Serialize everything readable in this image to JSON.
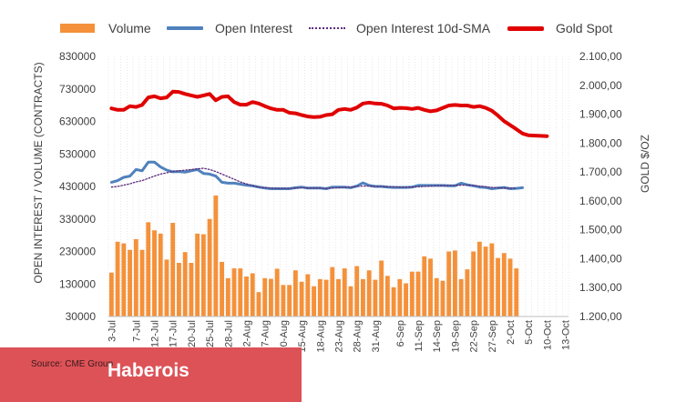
{
  "legend": [
    {
      "label": "Volume",
      "color": "#f4913a",
      "style": "bar"
    },
    {
      "label": "Open Interest",
      "color": "#4f81bd",
      "style": "line"
    },
    {
      "label": "Open Interest 10d-SMA",
      "color": "#5b2c7a",
      "style": "dotted"
    },
    {
      "label": "Gold Spot",
      "color": "#e00000",
      "style": "thick"
    }
  ],
  "source_text": "Source: CME Group",
  "brand": "Haberois",
  "chart_data": {
    "type": "bar",
    "title": "",
    "xlabel": "",
    "ylabel": "OPEN INTEREST / VOLUME (CONTRACTS)",
    "y2label": "GOLD $/OZ",
    "ylim": [
      30000,
      830000
    ],
    "y2lim": [
      1200,
      2100
    ],
    "yticks": [
      "30000",
      "130000",
      "230000",
      "330000",
      "430000",
      "530000",
      "630000",
      "730000",
      "830000"
    ],
    "y2ticks": [
      "1.200,00",
      "1.300,00",
      "1.400,00",
      "1.500,00",
      "1.600,00",
      "1.700,00",
      "1.800,00",
      "1.900,00",
      "2.000,00",
      "2.100,00"
    ],
    "categories": [
      "3-Jul",
      "4-Jul",
      "5-Jul",
      "6-Jul",
      "7-Jul",
      "10-Jul",
      "11-Jul",
      "12-Jul",
      "13-Jul",
      "14-Jul",
      "17-Jul",
      "18-Jul",
      "19-Jul",
      "20-Jul",
      "21-Jul",
      "24-Jul",
      "25-Jul",
      "26-Jul",
      "27-Jul",
      "28-Jul",
      "31-Jul",
      "1-Aug",
      "2-Aug",
      "3-Aug",
      "4-Aug",
      "7-Aug",
      "8-Aug",
      "9-Aug",
      "10-Aug",
      "11-Aug",
      "14-Aug",
      "15-Aug",
      "16-Aug",
      "17-Aug",
      "18-Aug",
      "21-Aug",
      "22-Aug",
      "23-Aug",
      "24-Aug",
      "25-Aug",
      "28-Aug",
      "29-Aug",
      "30-Aug",
      "31-Aug",
      "1-Sep",
      "4-Sep",
      "5-Sep",
      "6-Sep",
      "7-Sep",
      "8-Sep",
      "11-Sep",
      "12-Sep",
      "13-Sep",
      "14-Sep",
      "15-Sep",
      "18-Sep",
      "19-Sep",
      "20-Sep",
      "21-Sep",
      "22-Sep",
      "25-Sep",
      "26-Sep",
      "27-Sep",
      "28-Sep",
      "29-Sep",
      "2-Oct",
      "3-Oct",
      "4-Oct",
      "5-Oct",
      "6-Oct",
      "9-Oct",
      "10-Oct",
      "11-Oct",
      "12-Oct",
      "13-Oct"
    ],
    "tick_labels": [
      "3-Jul",
      "7-Jul",
      "12-Jul",
      "17-Jul",
      "20-Jul",
      "25-Jul",
      "28-Jul",
      "2-Aug",
      "7-Aug",
      "10-Aug",
      "15-Aug",
      "18-Aug",
      "23-Aug",
      "28-Aug",
      "31-Aug",
      "6-Sep",
      "11-Sep",
      "14-Sep",
      "19-Sep",
      "22-Sep",
      "27-Sep",
      "2-Oct",
      "5-Oct",
      "10-Oct",
      "13-Oct"
    ],
    "series": [
      {
        "name": "Volume",
        "type": "bar",
        "axis": "left",
        "values": [
          165000,
          260000,
          255000,
          235000,
          268000,
          235000,
          320000,
          295000,
          285000,
          205000,
          318000,
          195000,
          228000,
          195000,
          285000,
          283000,
          330000,
          402000,
          198000,
          148000,
          178000,
          178000,
          153000,
          163000,
          105000,
          148000,
          146000,
          177000,
          127000,
          127000,
          172000,
          137000,
          160000,
          123000,
          145000,
          143000,
          182000,
          145000,
          178000,
          123000,
          185000,
          145000,
          172000,
          143000,
          202000,
          155000,
          120000,
          145000,
          132000,
          168000,
          168000,
          215000,
          208000,
          148000,
          140000,
          230000,
          233000,
          145000,
          175000,
          230000,
          260000,
          245000,
          255000,
          210000,
          225000,
          208000,
          178000,
          null,
          null,
          null,
          null,
          null,
          null,
          null,
          null
        ]
      },
      {
        "name": "Open Interest",
        "type": "line",
        "axis": "left",
        "values": [
          443000,
          448000,
          458000,
          462000,
          482000,
          478000,
          505000,
          505000,
          490000,
          480000,
          475000,
          476000,
          474000,
          478000,
          482000,
          470000,
          468000,
          462000,
          443000,
          440000,
          440000,
          437000,
          434000,
          432000,
          428000,
          425000,
          423000,
          423000,
          423000,
          423000,
          426000,
          428000,
          425000,
          425000,
          425000,
          423000,
          428000,
          428000,
          428000,
          426000,
          431000,
          441000,
          433000,
          430000,
          430000,
          428000,
          427000,
          427000,
          427000,
          428000,
          433000,
          433000,
          433000,
          433000,
          433000,
          432000,
          432000,
          440000,
          435000,
          432000,
          428000,
          427000,
          423000,
          425000,
          427000,
          423000,
          424000,
          426000,
          null,
          null,
          null,
          null,
          null,
          null,
          null
        ]
      },
      {
        "name": "Open Interest 10d-SMA",
        "type": "dotted",
        "axis": "left",
        "values": [
          428000,
          430000,
          434000,
          438000,
          444000,
          448000,
          455000,
          462000,
          468000,
          472000,
          476000,
          478000,
          480000,
          482000,
          484000,
          486000,
          482000,
          476000,
          468000,
          460000,
          452000,
          444000,
          438000,
          432000,
          428000,
          426000,
          425000,
          424000,
          424000,
          424000,
          425000,
          426000,
          425000,
          425000,
          425000,
          424000,
          425000,
          426000,
          427000,
          428000,
          430000,
          431000,
          431000,
          430000,
          430000,
          429000,
          429000,
          428000,
          428000,
          428000,
          429000,
          430000,
          431000,
          432000,
          432000,
          433000,
          433000,
          434000,
          434000,
          433000,
          431000,
          429000,
          427000,
          426000,
          425000,
          425000,
          425000,
          null,
          null,
          null,
          null,
          null,
          null,
          null,
          null
        ]
      },
      {
        "name": "Gold Spot",
        "type": "thick",
        "axis": "right",
        "values": [
          1920,
          1915,
          1915,
          1928,
          1925,
          1932,
          1958,
          1962,
          1955,
          1958,
          1978,
          1977,
          1970,
          1965,
          1960,
          1965,
          1970,
          1948,
          1960,
          1962,
          1942,
          1933,
          1933,
          1942,
          1937,
          1928,
          1920,
          1915,
          1915,
          1905,
          1903,
          1897,
          1892,
          1890,
          1891,
          1897,
          1900,
          1915,
          1918,
          1915,
          1923,
          1937,
          1940,
          1937,
          1936,
          1930,
          1920,
          1922,
          1921,
          1918,
          1922,
          1915,
          1910,
          1913,
          1922,
          1930,
          1932,
          1930,
          1930,
          1925,
          1928,
          1922,
          1912,
          1895,
          1876,
          1862,
          1848,
          1833,
          1827,
          1826,
          1825,
          1824,
          null,
          null,
          null
        ]
      }
    ]
  }
}
